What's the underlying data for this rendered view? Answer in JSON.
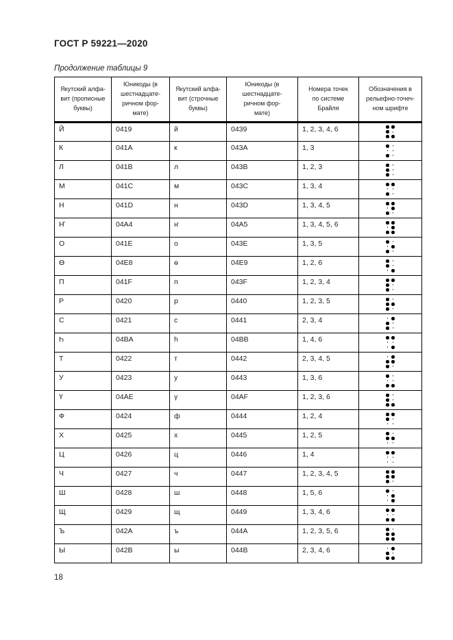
{
  "doc_header": "ГОСТ Р 59221—2020",
  "table_caption": "Продолжение таблицы 9",
  "page_number": "18",
  "colors": {
    "background": "#ffffff",
    "text": "#1c1c1c",
    "border": "#000000",
    "braille_dot": "#000000"
  },
  "table": {
    "headers": [
      "Якутский алфа-\nвит (прописные\nбуквы)",
      "Юникоды (в\nшестнадцате-\nричном фор-\nмате)",
      "Якутский алфа-\nвит (строчные\nбуквы)",
      "Юникоды (в\nшестнадцате-\nричном фор-\nмате)",
      "Номера точек\nпо системе\nБрайля",
      "Обозначения в\nрельефно-точеч-\nном шрифте"
    ],
    "braille_cell_layout": "dots 1-2-3 top-to-bottom in left column, dots 4-5-6 top-to-bottom in right column",
    "rows": [
      {
        "upper": "Й",
        "upper_code": "0419",
        "lower": "й",
        "lower_code": "0439",
        "dot_numbers": "1, 2, 3, 4, 6",
        "dots": [
          1,
          2,
          3,
          4,
          6
        ]
      },
      {
        "upper": "К",
        "upper_code": "041A",
        "lower": "к",
        "lower_code": "043A",
        "dot_numbers": "1, 3",
        "dots": [
          1,
          3
        ]
      },
      {
        "upper": "Л",
        "upper_code": "041B",
        "lower": "л",
        "lower_code": "043B",
        "dot_numbers": "1, 2, 3",
        "dots": [
          1,
          2,
          3
        ]
      },
      {
        "upper": "М",
        "upper_code": "041C",
        "lower": "м",
        "lower_code": "043C",
        "dot_numbers": "1, 3, 4",
        "dots": [
          1,
          3,
          4
        ]
      },
      {
        "upper": "Н",
        "upper_code": "041D",
        "lower": "н",
        "lower_code": "043D",
        "dot_numbers": "1, 3, 4, 5",
        "dots": [
          1,
          3,
          4,
          5
        ]
      },
      {
        "upper": "Ҥ",
        "upper_code": "04A4",
        "lower": "ҥ",
        "lower_code": "04A5",
        "dot_numbers": "1, 3, 4, 5, 6",
        "dots": [
          1,
          3,
          4,
          5,
          6
        ]
      },
      {
        "upper": "О",
        "upper_code": "041E",
        "lower": "о",
        "lower_code": "043E",
        "dot_numbers": "1, 3, 5",
        "dots": [
          1,
          3,
          5
        ]
      },
      {
        "upper": "Ө",
        "upper_code": "04E8",
        "lower": "ө",
        "lower_code": "04E9",
        "dot_numbers": "1, 2, 6",
        "dots": [
          1,
          2,
          6
        ]
      },
      {
        "upper": "П",
        "upper_code": "041F",
        "lower": "п",
        "lower_code": "043F",
        "dot_numbers": "1, 2, 3, 4",
        "dots": [
          1,
          2,
          3,
          4
        ]
      },
      {
        "upper": "Р",
        "upper_code": "0420",
        "lower": "р",
        "lower_code": "0440",
        "dot_numbers": "1, 2, 3, 5",
        "dots": [
          1,
          2,
          3,
          5
        ]
      },
      {
        "upper": "С",
        "upper_code": "0421",
        "lower": "с",
        "lower_code": "0441",
        "dot_numbers": "2, 3, 4",
        "dots": [
          2,
          3,
          4
        ]
      },
      {
        "upper": "Һ",
        "upper_code": "04BA",
        "lower": "һ",
        "lower_code": "04BB",
        "dot_numbers": "1, 4, 6",
        "dots": [
          1,
          4,
          6
        ]
      },
      {
        "upper": "Т",
        "upper_code": "0422",
        "lower": "т",
        "lower_code": "0442",
        "dot_numbers": "2, 3, 4, 5",
        "dots": [
          2,
          3,
          4,
          5
        ]
      },
      {
        "upper": "У",
        "upper_code": "0423",
        "lower": "у",
        "lower_code": "0443",
        "dot_numbers": "1, 3, 6",
        "dots": [
          1,
          3,
          6
        ]
      },
      {
        "upper": "Ү",
        "upper_code": "04AE",
        "lower": "ү",
        "lower_code": "04AF",
        "dot_numbers": "1, 2, 3, 6",
        "dots": [
          1,
          2,
          3,
          6
        ]
      },
      {
        "upper": "Ф",
        "upper_code": "0424",
        "lower": "ф",
        "lower_code": "0444",
        "dot_numbers": "1, 2, 4",
        "dots": [
          1,
          2,
          4
        ]
      },
      {
        "upper": "Х",
        "upper_code": "0425",
        "lower": "х",
        "lower_code": "0445",
        "dot_numbers": "1, 2, 5",
        "dots": [
          1,
          2,
          5
        ]
      },
      {
        "upper": "Ц",
        "upper_code": "0426",
        "lower": "ц",
        "lower_code": "0446",
        "dot_numbers": "1, 4",
        "dots": [
          1,
          4
        ]
      },
      {
        "upper": "Ч",
        "upper_code": "0427",
        "lower": "ч",
        "lower_code": "0447",
        "dot_numbers": "1, 2, 3, 4, 5",
        "dots": [
          1,
          2,
          3,
          4,
          5
        ]
      },
      {
        "upper": "Ш",
        "upper_code": "0428",
        "lower": "ш",
        "lower_code": "0448",
        "dot_numbers": "1, 5, 6",
        "dots": [
          1,
          5,
          6
        ]
      },
      {
        "upper": "Щ",
        "upper_code": "0429",
        "lower": "щ",
        "lower_code": "0449",
        "dot_numbers": "1, 3, 4, 6",
        "dots": [
          1,
          3,
          4,
          6
        ]
      },
      {
        "upper": "Ъ",
        "upper_code": "042A",
        "lower": "ъ",
        "lower_code": "044A",
        "dot_numbers": "1, 2, 3, 5, 6",
        "dots": [
          1,
          2,
          3,
          5,
          6
        ]
      },
      {
        "upper": "Ы",
        "upper_code": "042B",
        "lower": "ы",
        "lower_code": "044B",
        "dot_numbers": "2, 3, 4, 6",
        "dots": [
          2,
          3,
          4,
          6
        ]
      }
    ]
  }
}
